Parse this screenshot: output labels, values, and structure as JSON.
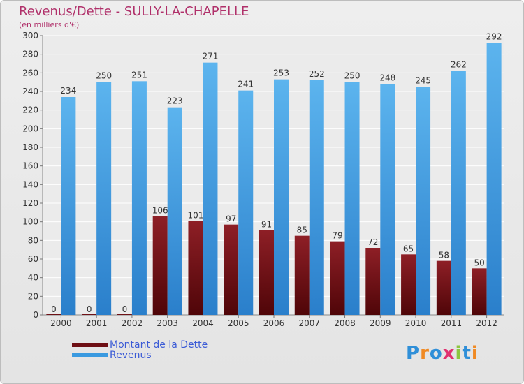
{
  "title": "Revenus/Dette - SULLY-LA-CHAPELLE",
  "subtitle": "(en milliers d'€)",
  "legend": {
    "debt_label": "Montant de la Dette",
    "revenue_label": "Revenus"
  },
  "logo": {
    "p": "P",
    "r": "r",
    "o": "o",
    "x": "x",
    "i1": "i",
    "t": "t",
    "i2": "i"
  },
  "colors": {
    "debt": "#6e0f14",
    "revenue": "#3a9ae0",
    "title": "#b0306a",
    "legend_text": "#3b5bd6"
  },
  "chart_data": {
    "type": "bar",
    "categories": [
      "2000",
      "2001",
      "2002",
      "2003",
      "2004",
      "2005",
      "2006",
      "2007",
      "2008",
      "2009",
      "2010",
      "2011",
      "2012"
    ],
    "series": [
      {
        "name": "Montant de la Dette",
        "values": [
          0,
          0,
          0,
          106,
          101,
          97,
          91,
          85,
          79,
          72,
          65,
          58,
          50
        ]
      },
      {
        "name": "Revenus",
        "values": [
          234,
          250,
          251,
          223,
          271,
          241,
          253,
          252,
          250,
          248,
          245,
          262,
          292
        ]
      }
    ],
    "ylim": [
      0,
      300
    ],
    "yticks": [
      0,
      20,
      40,
      60,
      80,
      100,
      120,
      140,
      160,
      180,
      200,
      220,
      240,
      260,
      280,
      300
    ],
    "grid": true,
    "legend_position": "bottom-left"
  }
}
